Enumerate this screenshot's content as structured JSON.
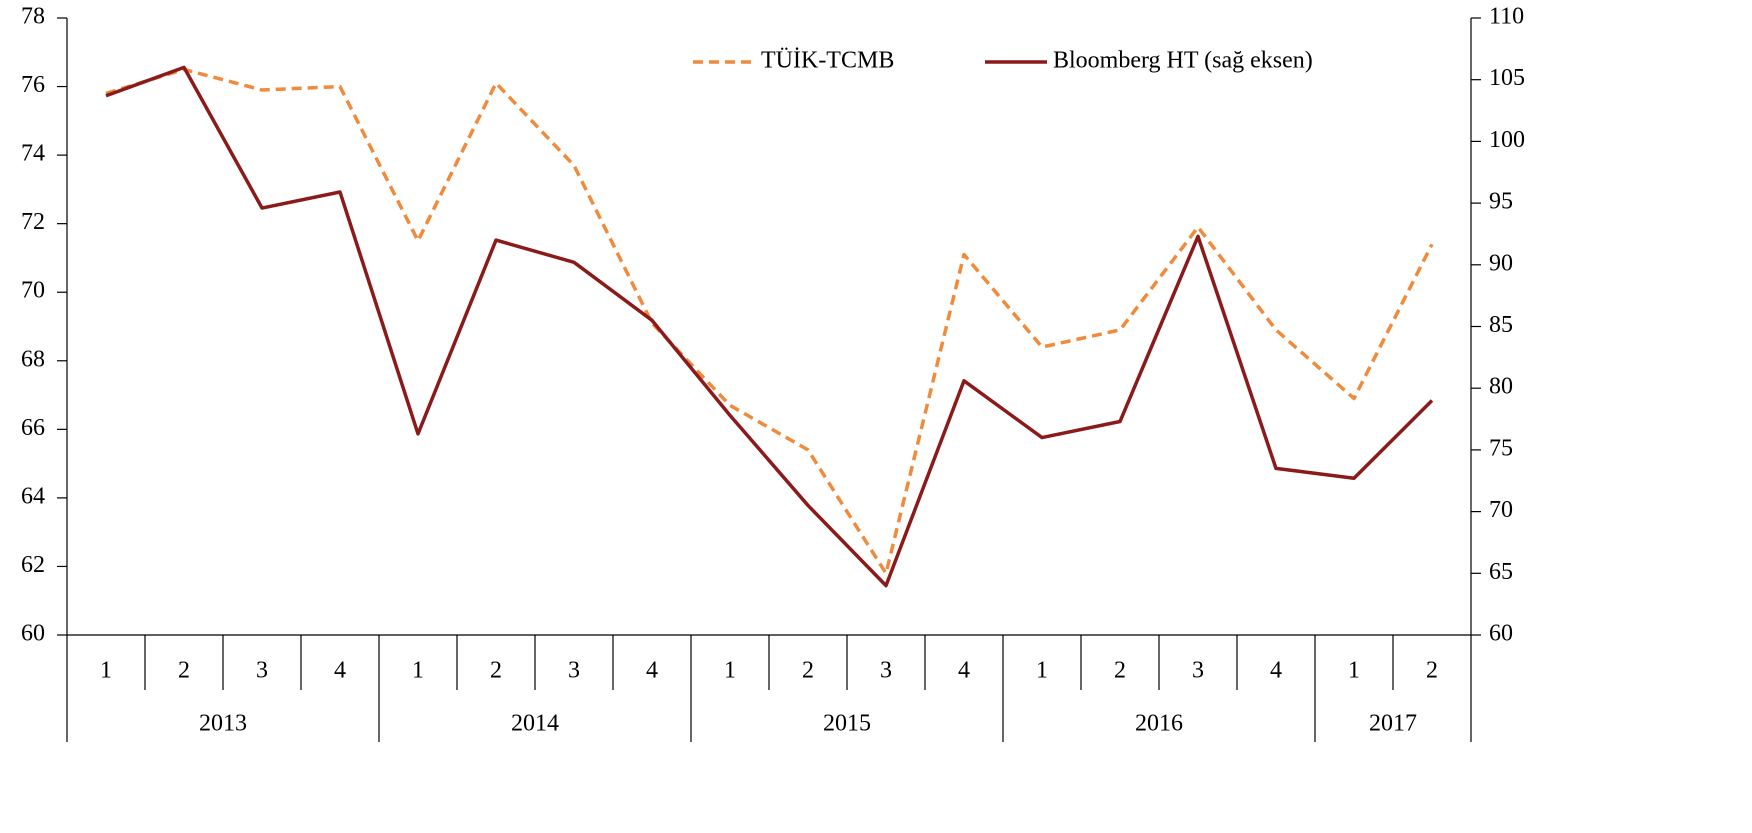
{
  "chart_data": {
    "type": "line",
    "categories": [
      "1",
      "2",
      "3",
      "4",
      "1",
      "2",
      "3",
      "4",
      "1",
      "2",
      "3",
      "4",
      "1",
      "2",
      "3",
      "4",
      "1",
      "2"
    ],
    "years": [
      "2013",
      null,
      null,
      null,
      "2014",
      null,
      null,
      null,
      "2015",
      null,
      null,
      null,
      "2016",
      null,
      null,
      null,
      "2017",
      null
    ],
    "series": [
      {
        "name": "TÜİK-TCMB",
        "color": "#f08a3c",
        "dashed": true,
        "axis": "y",
        "values": [
          75.8,
          76.5,
          75.9,
          76.0,
          71.5,
          76.1,
          73.7,
          69.1,
          66.7,
          65.4,
          61.8,
          71.1,
          68.4,
          68.9,
          71.9,
          68.9,
          66.9,
          71.4
        ]
      },
      {
        "name": "Bloomberg HT (sağ eksen)",
        "color": "#8b1a1a",
        "dashed": false,
        "axis": "y2",
        "values": [
          103.7,
          106.0,
          94.6,
          95.9,
          76.3,
          92.0,
          90.2,
          85.5,
          77.8,
          70.5,
          64.0,
          80.6,
          76.0,
          77.3,
          92.3,
          73.5,
          72.7,
          79.0
        ]
      }
    ],
    "ylim": [
      60,
      78
    ],
    "yticks": [
      60,
      62,
      64,
      66,
      68,
      70,
      72,
      74,
      76,
      78
    ],
    "y2lim": [
      60,
      110
    ],
    "y2ticks": [
      60,
      65,
      70,
      75,
      80,
      85,
      90,
      95,
      100,
      105,
      110
    ],
    "grid": false,
    "legend": "top"
  }
}
